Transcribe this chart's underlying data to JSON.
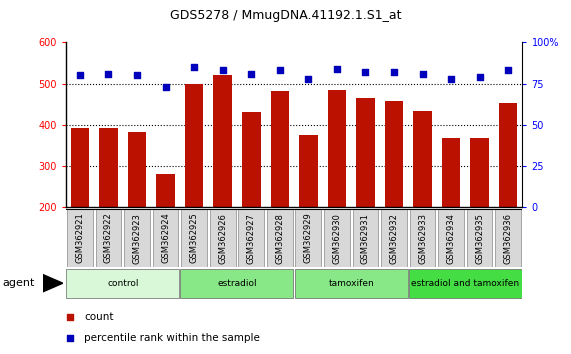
{
  "title": "GDS5278 / MmugDNA.41192.1.S1_at",
  "samples": [
    "GSM362921",
    "GSM362922",
    "GSM362923",
    "GSM362924",
    "GSM362925",
    "GSM362926",
    "GSM362927",
    "GSM362928",
    "GSM362929",
    "GSM362930",
    "GSM362931",
    "GSM362932",
    "GSM362933",
    "GSM362934",
    "GSM362935",
    "GSM362936"
  ],
  "counts": [
    393,
    393,
    382,
    280,
    500,
    520,
    432,
    482,
    375,
    485,
    465,
    458,
    433,
    368,
    368,
    452
  ],
  "percentile_ranks": [
    80,
    81,
    80,
    73,
    85,
    83,
    81,
    83,
    78,
    84,
    82,
    82,
    81,
    78,
    79,
    83
  ],
  "groups": [
    {
      "label": "control",
      "start": 0,
      "end": 4,
      "color": "#d8f8d8"
    },
    {
      "label": "estradiol",
      "start": 4,
      "end": 8,
      "color": "#88e888"
    },
    {
      "label": "tamoxifen",
      "start": 8,
      "end": 12,
      "color": "#88e888"
    },
    {
      "label": "estradiol and tamoxifen",
      "start": 12,
      "end": 16,
      "color": "#44dd44"
    }
  ],
  "agent_label": "agent",
  "bar_color": "#bb1100",
  "dot_color": "#0000bb",
  "ylim_left": [
    200,
    600
  ],
  "ylim_right": [
    0,
    100
  ],
  "yticks_left": [
    200,
    300,
    400,
    500,
    600
  ],
  "yticks_right": [
    0,
    25,
    50,
    75,
    100
  ],
  "ytick_right_labels": [
    "0",
    "25",
    "50",
    "75",
    "100%"
  ],
  "legend_count": "count",
  "legend_percentile": "percentile rank within the sample",
  "bg_color": "#ffffff",
  "plot_bg_color": "#ffffff",
  "grid_dotted_at": [
    300,
    400,
    500
  ],
  "grid_color": "#000000"
}
